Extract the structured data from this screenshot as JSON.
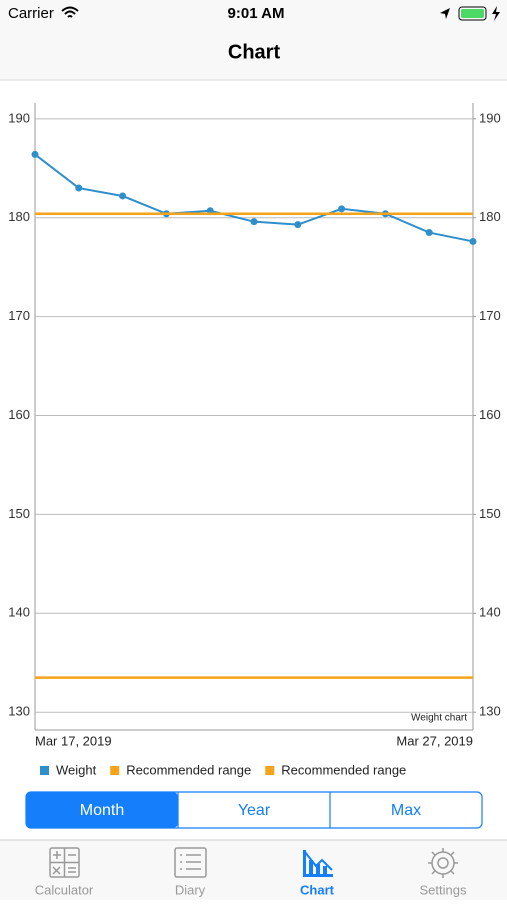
{
  "status_bar": {
    "carrier": "Carrier",
    "time": "9:01 AM"
  },
  "nav": {
    "title": "Chart"
  },
  "chart_data": {
    "type": "line",
    "annotation": "Weight chart",
    "categories": [
      "Mar 17, 2019",
      null,
      null,
      null,
      null,
      null,
      null,
      null,
      null,
      null,
      "Mar 27, 2019"
    ],
    "series": [
      {
        "name": "Weight",
        "color": "#2e8fcc",
        "values": [
          186.4,
          183.0,
          182.2,
          180.4,
          180.7,
          179.6,
          179.3,
          180.9,
          180.4,
          178.5,
          177.6
        ]
      },
      {
        "name": "Recommended range",
        "color": "#f5a31a",
        "values": [
          180.4,
          180.4,
          180.4,
          180.4,
          180.4,
          180.4,
          180.4,
          180.4,
          180.4,
          180.4,
          180.4
        ]
      },
      {
        "name": "Recommended range",
        "color": "#f5a31a",
        "values": [
          133.5,
          133.5,
          133.5,
          133.5,
          133.5,
          133.5,
          133.5,
          133.5,
          133.5,
          133.5,
          133.5
        ]
      }
    ],
    "ylim": [
      128.2,
      191.6
    ],
    "yticks": [
      130,
      140,
      150,
      160,
      170,
      180,
      190
    ],
    "y2lim": [
      128.2,
      191.6
    ],
    "y2ticks": [
      130,
      140,
      150,
      160,
      170,
      180,
      190
    ],
    "grid": true
  },
  "segments": {
    "items": [
      "Month",
      "Year",
      "Max"
    ],
    "selected": 0
  },
  "tab_bar": {
    "items": [
      "Calculator",
      "Diary",
      "Chart",
      "Settings"
    ],
    "selected": 2
  }
}
